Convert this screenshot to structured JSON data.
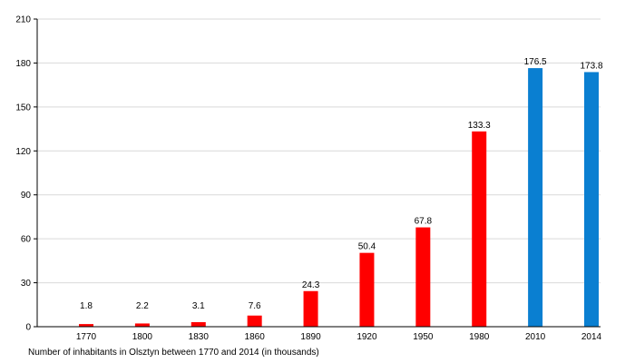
{
  "chart_data": {
    "type": "bar",
    "title": "",
    "xlabel": "",
    "ylabel": "",
    "caption": "Number of inhabitants in Olsztyn between 1770 and 2014 (in thousands)",
    "categories": [
      "1770",
      "1800",
      "1830",
      "1860",
      "1890",
      "1920",
      "1950",
      "1980",
      "2010",
      "2014"
    ],
    "values": [
      1.8,
      2.2,
      3.1,
      7.6,
      24.3,
      50.4,
      67.8,
      133.3,
      176.5,
      173.8
    ],
    "data_labels": [
      "1.8",
      "2.2",
      "3.1",
      "7.6",
      "24.3",
      "50.4",
      "67.8",
      "133.3",
      "176.5",
      "173.8"
    ],
    "bar_colors": [
      "#ff0000",
      "#ff0000",
      "#ff0000",
      "#ff0000",
      "#ff0000",
      "#ff0000",
      "#ff0000",
      "#ff0000",
      "#0a7fd1",
      "#0a7fd1"
    ],
    "ylim": [
      0,
      210
    ],
    "yticks": [
      0,
      30,
      60,
      90,
      120,
      150,
      180,
      210
    ],
    "grid": true
  }
}
